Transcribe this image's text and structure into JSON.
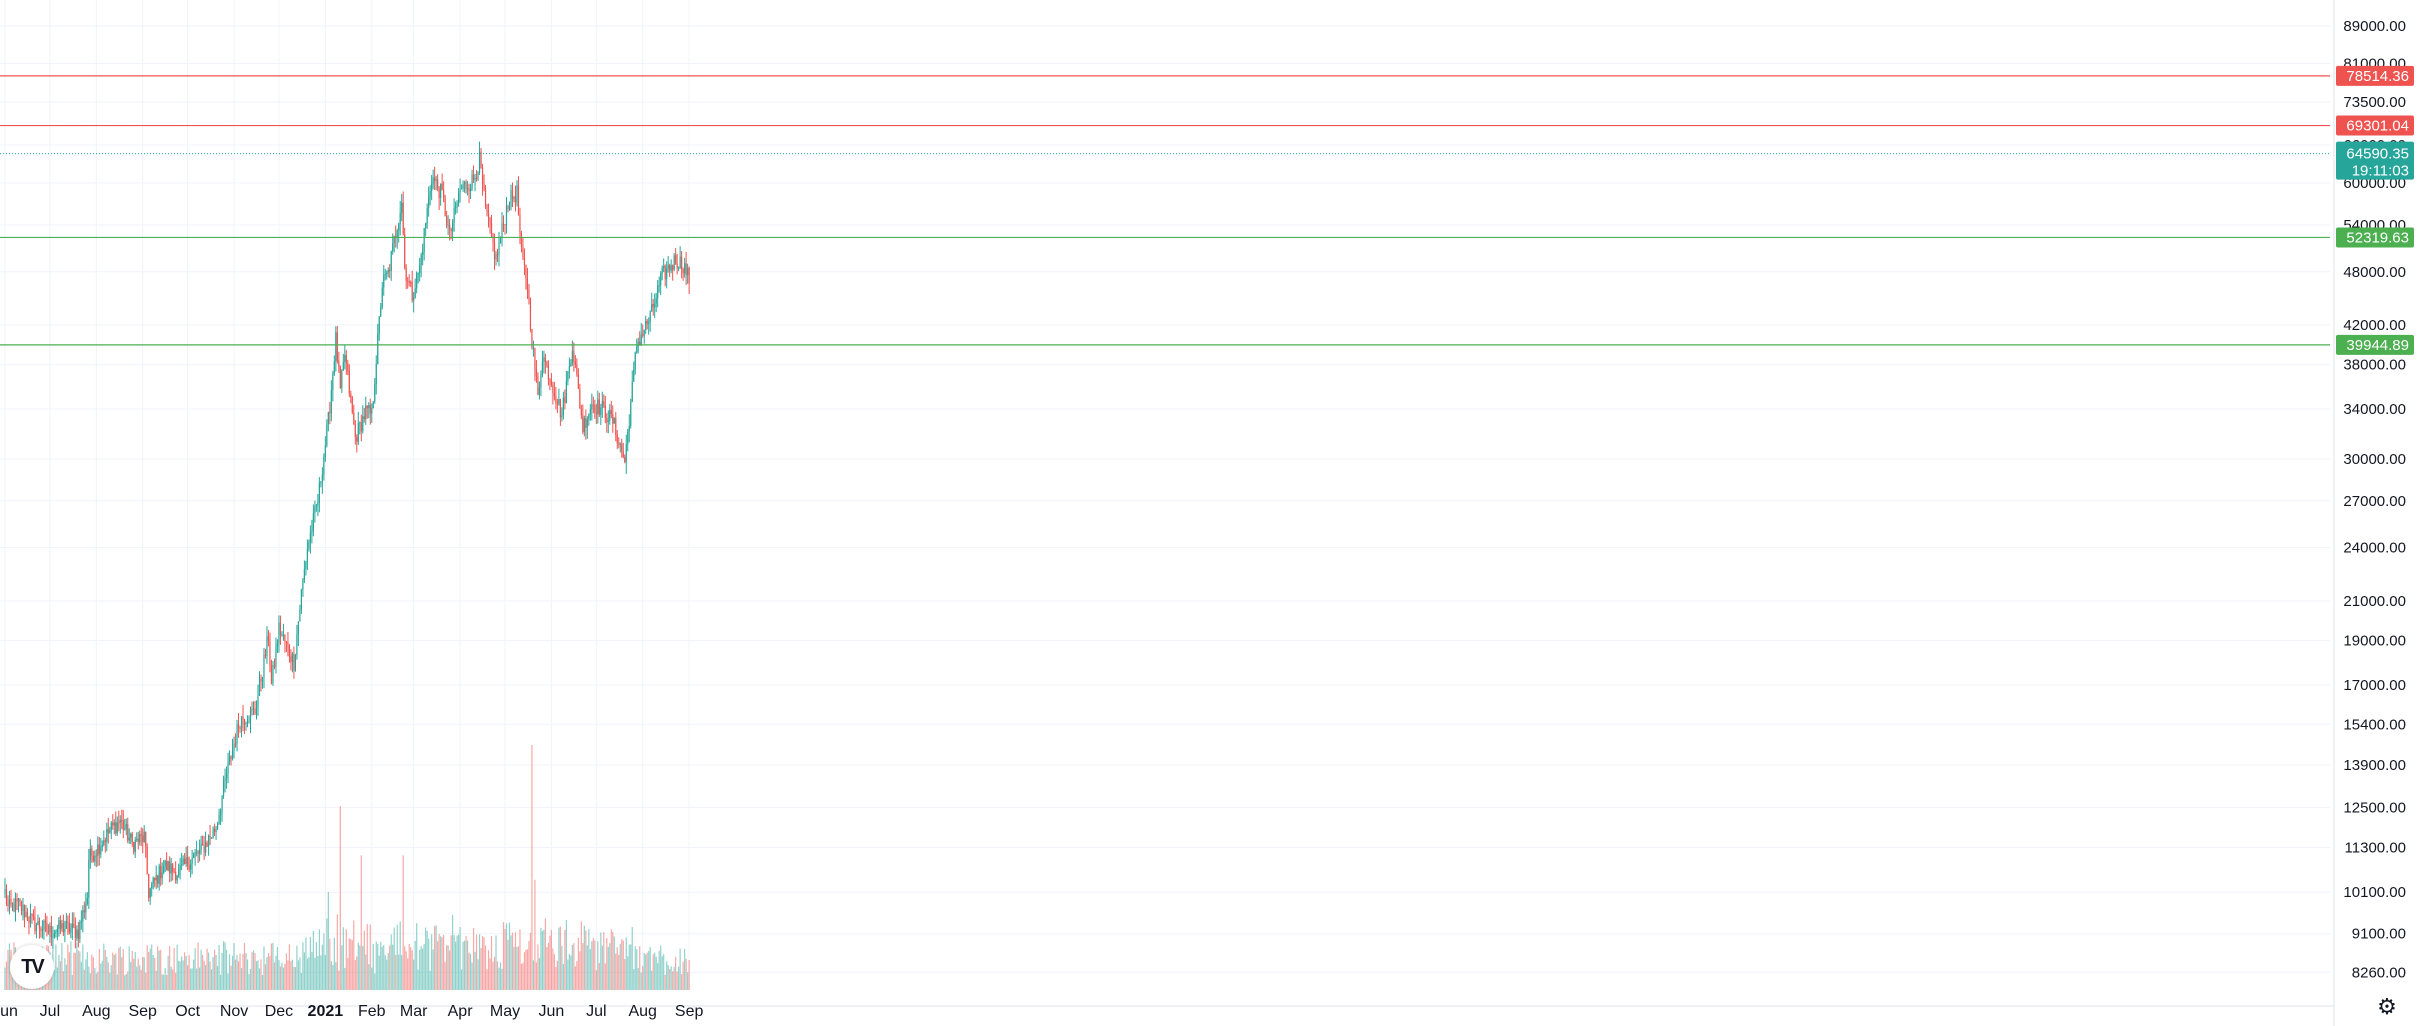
{
  "logo": {
    "text": "TV",
    "icon": "tradingview-logo-icon"
  },
  "settings": {
    "icon": "gear-icon",
    "glyph": "⚙"
  },
  "colors": {
    "up": "#26a69a",
    "down": "#ef5350",
    "grid": "#f0f3fa",
    "axis_text": "#131722"
  },
  "chart_data": {
    "type": "candlestick",
    "scale": "log",
    "x_start": "2020-06-01",
    "x_ticks": [
      {
        "date": "2020-06-01",
        "label": "Jun",
        "bold": false
      },
      {
        "date": "2020-07-01",
        "label": "Jul",
        "bold": false
      },
      {
        "date": "2020-08-01",
        "label": "Aug",
        "bold": false
      },
      {
        "date": "2020-09-01",
        "label": "Sep",
        "bold": false
      },
      {
        "date": "2020-10-01",
        "label": "Oct",
        "bold": false
      },
      {
        "date": "2020-11-01",
        "label": "Nov",
        "bold": false
      },
      {
        "date": "2020-12-01",
        "label": "Dec",
        "bold": false
      },
      {
        "date": "2021-01-01",
        "label": "2021",
        "bold": true
      },
      {
        "date": "2021-02-01",
        "label": "Feb",
        "bold": false
      },
      {
        "date": "2021-03-01",
        "label": "Mar",
        "bold": false
      },
      {
        "date": "2021-04-01",
        "label": "Apr",
        "bold": false
      },
      {
        "date": "2021-05-01",
        "label": "May",
        "bold": false
      },
      {
        "date": "2021-06-01",
        "label": "Jun",
        "bold": false
      },
      {
        "date": "2021-07-01",
        "label": "Jul",
        "bold": false
      },
      {
        "date": "2021-08-01",
        "label": "Aug",
        "bold": false
      },
      {
        "date": "2021-09-01",
        "label": "Sep",
        "bold": false
      }
    ],
    "y_ticks": [
      "89000.00",
      "81000.00",
      "73500.00",
      "66000.00",
      "60000.00",
      "54000.00",
      "48000.00",
      "42000.00",
      "38000.00",
      "34000.00",
      "30000.00",
      "27000.00",
      "24000.00",
      "21000.00",
      "19000.00",
      "17000.00",
      "15400.00",
      "13900.00",
      "12500.00",
      "11300.00",
      "10100.00",
      "9100.00",
      "8260.00"
    ],
    "y_range": [
      7900,
      95000
    ],
    "levels": [
      {
        "value": 78514.36,
        "label": "78514.36",
        "color": "#ef5350"
      },
      {
        "value": 69301.04,
        "label": "69301.04",
        "color": "#ef5350"
      },
      {
        "value": 52319.63,
        "label": "52319.63",
        "color": "#4caf50"
      },
      {
        "value": 39944.89,
        "label": "39944.89",
        "color": "#4caf50"
      }
    ],
    "last_price": {
      "value": 64590.35,
      "label": "64590.35",
      "countdown": "19:11:03",
      "color": "#26a69a"
    },
    "anchors": [
      [
        "2020-06-01",
        10100
      ],
      [
        "2020-06-03",
        9700
      ],
      [
        "2020-06-10",
        9800
      ],
      [
        "2020-06-20",
        9350
      ],
      [
        "2020-07-01",
        9150
      ],
      [
        "2020-07-10",
        9250
      ],
      [
        "2020-07-20",
        9150
      ],
      [
        "2020-07-26",
        10000
      ],
      [
        "2020-07-27",
        11000
      ],
      [
        "2020-08-02",
        11300
      ],
      [
        "2020-08-10",
        11800
      ],
      [
        "2020-08-17",
        12100
      ],
      [
        "2020-08-25",
        11400
      ],
      [
        "2020-09-02",
        11600
      ],
      [
        "2020-09-05",
        10100
      ],
      [
        "2020-09-15",
        10800
      ],
      [
        "2020-09-25",
        10600
      ],
      [
        "2020-10-01",
        10900
      ],
      [
        "2020-10-10",
        11200
      ],
      [
        "2020-10-20",
        11900
      ],
      [
        "2020-10-27",
        13600
      ],
      [
        "2020-11-05",
        15600
      ],
      [
        "2020-11-15",
        15900
      ],
      [
        "2020-11-24",
        19200
      ],
      [
        "2020-11-26",
        17000
      ],
      [
        "2020-12-01",
        19600
      ],
      [
        "2020-12-11",
        18000
      ],
      [
        "2020-12-16",
        21400
      ],
      [
        "2020-12-20",
        24000
      ],
      [
        "2020-12-27",
        27000
      ],
      [
        "2021-01-03",
        33000
      ],
      [
        "2021-01-08",
        40500
      ],
      [
        "2021-01-11",
        35500
      ],
      [
        "2021-01-14",
        39000
      ],
      [
        "2021-01-21",
        31600
      ],
      [
        "2021-01-28",
        33800
      ],
      [
        "2021-02-01",
        33500
      ],
      [
        "2021-02-08",
        46500
      ],
      [
        "2021-02-12",
        47800
      ],
      [
        "2021-02-21",
        57500
      ],
      [
        "2021-02-23",
        48500
      ],
      [
        "2021-02-28",
        45300
      ],
      [
        "2021-03-05",
        48500
      ],
      [
        "2021-03-13",
        61000
      ],
      [
        "2021-03-20",
        58200
      ],
      [
        "2021-03-25",
        52500
      ],
      [
        "2021-04-01",
        59000
      ],
      [
        "2021-04-10",
        60500
      ],
      [
        "2021-04-14",
        63500
      ],
      [
        "2021-04-18",
        56000
      ],
      [
        "2021-04-25",
        49500
      ],
      [
        "2021-05-03",
        57200
      ],
      [
        "2021-05-09",
        58500
      ],
      [
        "2021-05-12",
        50000
      ],
      [
        "2021-05-16",
        46500
      ],
      [
        "2021-05-19",
        40500
      ],
      [
        "2021-05-23",
        35000
      ],
      [
        "2021-05-26",
        39000
      ],
      [
        "2021-06-01",
        36500
      ],
      [
        "2021-06-08",
        33500
      ],
      [
        "2021-06-15",
        40000
      ],
      [
        "2021-06-22",
        32500
      ],
      [
        "2021-06-28",
        34500
      ],
      [
        "2021-07-05",
        34000
      ],
      [
        "2021-07-12",
        33000
      ],
      [
        "2021-07-20",
        29800
      ],
      [
        "2021-07-28",
        40000
      ],
      [
        "2021-08-06",
        42800
      ],
      [
        "2021-08-14",
        47500
      ],
      [
        "2021-08-23",
        49500
      ],
      [
        "2021-08-28",
        48900
      ],
      [
        "2021-09-01",
        47200
      ]
    ],
    "volume_spikes": [
      {
        "date": "2021-01-11",
        "ratio": 0.75
      },
      {
        "date": "2021-05-19",
        "ratio": 1.0
      },
      {
        "date": "2021-02-22",
        "ratio": 0.55
      },
      {
        "date": "2021-01-25",
        "ratio": 0.55
      },
      {
        "date": "2021-01-03",
        "ratio": 0.4
      },
      {
        "date": "2021-05-21",
        "ratio": 0.45
      }
    ]
  }
}
